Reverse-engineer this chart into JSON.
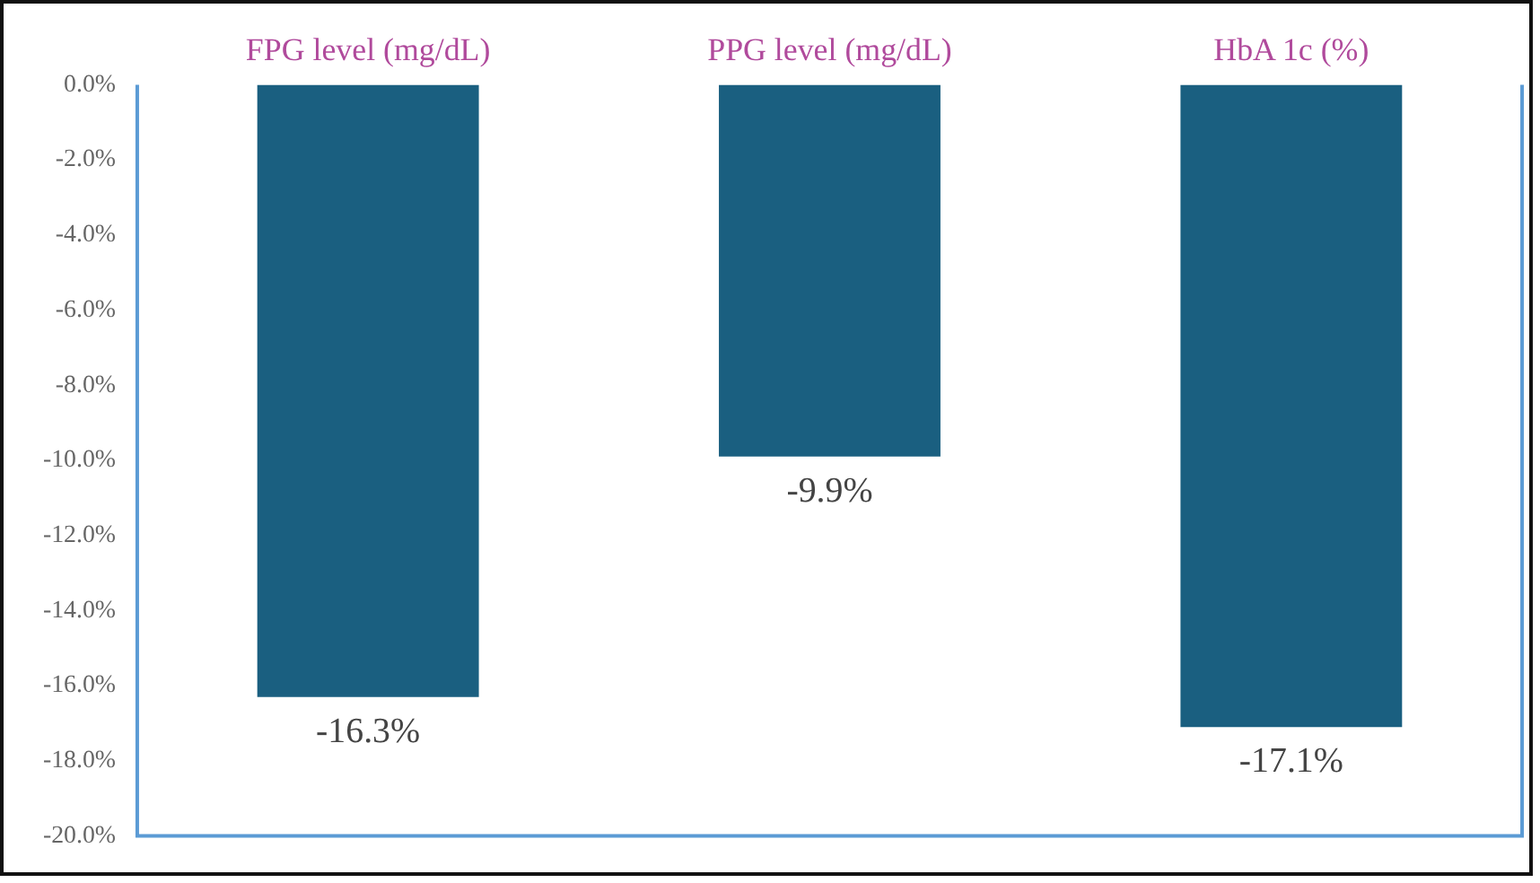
{
  "chart_data": {
    "type": "bar",
    "categories": [
      "FPG level (mg/dL)",
      "PPG level (mg/dL)",
      "HbA 1c (%)"
    ],
    "series": [
      {
        "color": "#1a5f80",
        "values": [
          -16.3,
          -9.9,
          -17.1
        ],
        "value_labels": [
          "-16.3%",
          "-9.9%",
          "-17.1%"
        ]
      }
    ],
    "ylim": [
      -20,
      0
    ],
    "yticks": [
      {
        "value": 0,
        "label": "0.0%"
      },
      {
        "value": -2,
        "label": "-2.0%"
      },
      {
        "value": -4,
        "label": "-4.0%"
      },
      {
        "value": -6,
        "label": "-6.0%"
      },
      {
        "value": -8,
        "label": "-8.0%"
      },
      {
        "value": -10,
        "label": "-10.0%"
      },
      {
        "value": -12,
        "label": "-12.0%"
      },
      {
        "value": -14,
        "label": "-14.0%"
      },
      {
        "value": -16,
        "label": "-16.0%"
      },
      {
        "value": -18,
        "label": "-18.0%"
      },
      {
        "value": -20,
        "label": "-20.0%"
      }
    ],
    "grid": false,
    "legend": false
  }
}
